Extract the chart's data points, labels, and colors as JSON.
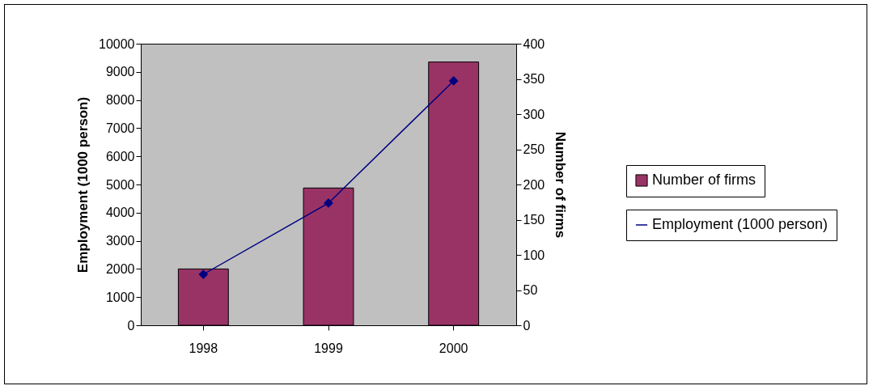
{
  "chart_data": {
    "type": "bar",
    "categories": [
      "1998",
      "1999",
      "2000"
    ],
    "series": [
      {
        "name": "Number of firms",
        "axis": "y2",
        "color": "#993366",
        "values": [
          80,
          195,
          374
        ]
      },
      {
        "name": "Employment (1000 person)",
        "type": "line",
        "axis": "y",
        "color": "#000080",
        "values": [
          1810,
          4340,
          8680
        ]
      }
    ],
    "ylabel": "Employment (1000 person)",
    "y2label": "Number of firms",
    "ylim": [
      0,
      10000
    ],
    "yticks": [
      0,
      1000,
      2000,
      3000,
      4000,
      5000,
      6000,
      7000,
      8000,
      9000,
      10000
    ],
    "y2lim": [
      0,
      400
    ],
    "y2ticks": [
      0,
      50,
      100,
      150,
      200,
      250,
      300,
      350,
      400
    ],
    "marker": "diamond",
    "grid": false,
    "legend": "right"
  }
}
